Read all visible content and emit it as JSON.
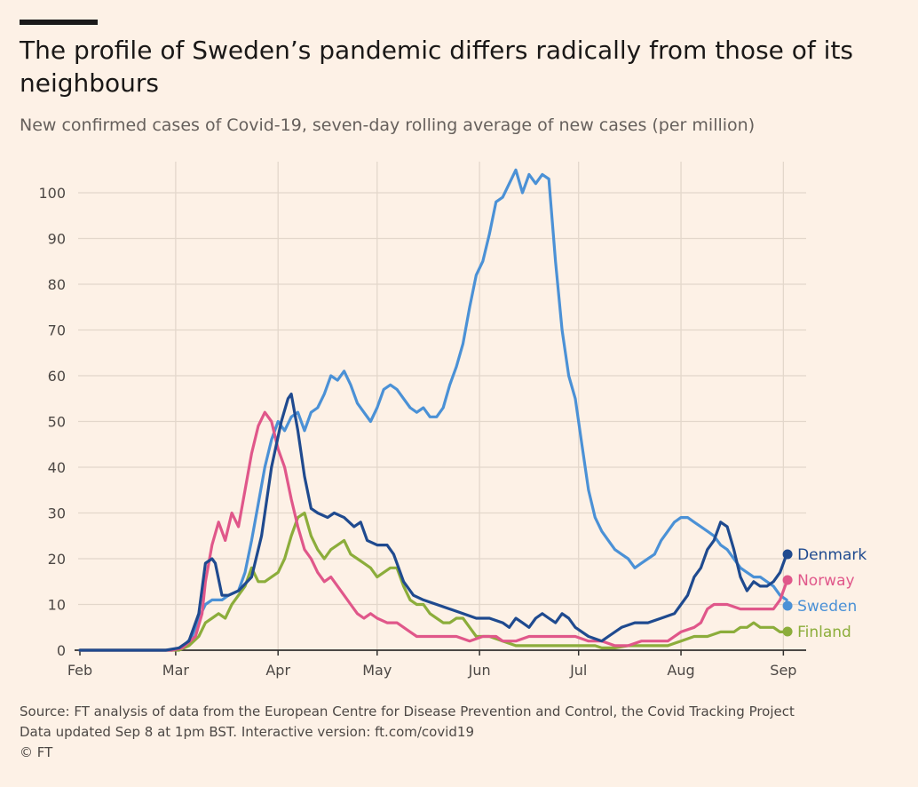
{
  "header": {
    "title": "The profile of Sweden’s pandemic differs radically from those of its neighbours",
    "subtitle": "New confirmed cases of Covid-19, seven-day rolling average of new cases (per million)"
  },
  "footer": {
    "source": "Source: FT analysis of data from the European Centre for Disease Prevention and Control, the Covid Tracking Project",
    "updated": "Data updated Sep 8 at 1pm BST. Interactive version: ft.com/covid19",
    "copyright": "© FT"
  },
  "colors": {
    "background": "#fdf1e6",
    "grid": "#e3d7cb",
    "axis": "#33302e",
    "Denmark": "#1f4a8f",
    "Norway": "#e0578a",
    "Sweden": "#4b91d6",
    "Finland": "#8cad3b"
  },
  "chart_data": {
    "type": "line",
    "title": "The profile of Sweden’s pandemic differs radically from those of its neighbours",
    "subtitle": "New confirmed cases of Covid-19, seven-day rolling average of new cases (per million)",
    "xlabel": "",
    "ylabel": "",
    "x_unit": "day of year 2020 (Feb 1 = 0)",
    "xlim": [
      -2,
      220
    ],
    "ylim": [
      0,
      105
    ],
    "grid": true,
    "x_ticks": [
      {
        "label": "Feb",
        "day": 0
      },
      {
        "label": "Mar",
        "day": 29
      },
      {
        "label": "Apr",
        "day": 60
      },
      {
        "label": "May",
        "day": 90
      },
      {
        "label": "Jun",
        "day": 121
      },
      {
        "label": "Jul",
        "day": 151
      },
      {
        "label": "Aug",
        "day": 182
      },
      {
        "label": "Sep",
        "day": 213
      }
    ],
    "y_ticks": [
      0,
      10,
      20,
      30,
      40,
      50,
      60,
      70,
      80,
      90,
      100
    ],
    "legend_placement": "right end of lines",
    "series": [
      {
        "name": "Denmark",
        "points": [
          [
            0,
            0
          ],
          [
            26,
            0
          ],
          [
            30,
            0.5
          ],
          [
            33,
            2
          ],
          [
            36,
            8
          ],
          [
            38,
            19
          ],
          [
            40,
            20
          ],
          [
            41,
            19
          ],
          [
            43,
            12
          ],
          [
            45,
            12
          ],
          [
            48,
            13
          ],
          [
            52,
            16
          ],
          [
            55,
            25
          ],
          [
            58,
            40
          ],
          [
            61,
            50
          ],
          [
            63,
            55
          ],
          [
            64,
            56
          ],
          [
            66,
            48
          ],
          [
            68,
            38
          ],
          [
            70,
            31
          ],
          [
            72,
            30
          ],
          [
            75,
            29
          ],
          [
            77,
            30
          ],
          [
            80,
            29
          ],
          [
            83,
            27
          ],
          [
            85,
            28
          ],
          [
            87,
            24
          ],
          [
            90,
            23
          ],
          [
            93,
            23
          ],
          [
            95,
            21
          ],
          [
            98,
            15
          ],
          [
            101,
            12
          ],
          [
            104,
            11
          ],
          [
            108,
            10
          ],
          [
            112,
            9
          ],
          [
            116,
            8
          ],
          [
            120,
            7
          ],
          [
            124,
            7
          ],
          [
            128,
            6
          ],
          [
            130,
            5
          ],
          [
            132,
            7
          ],
          [
            134,
            6
          ],
          [
            136,
            5
          ],
          [
            138,
            7
          ],
          [
            140,
            8
          ],
          [
            142,
            7
          ],
          [
            144,
            6
          ],
          [
            146,
            8
          ],
          [
            148,
            7
          ],
          [
            150,
            5
          ],
          [
            154,
            3
          ],
          [
            158,
            2
          ],
          [
            160,
            3
          ],
          [
            164,
            5
          ],
          [
            168,
            6
          ],
          [
            172,
            6
          ],
          [
            176,
            7
          ],
          [
            180,
            8
          ],
          [
            184,
            12
          ],
          [
            186,
            16
          ],
          [
            188,
            18
          ],
          [
            190,
            22
          ],
          [
            192,
            24
          ],
          [
            194,
            28
          ],
          [
            196,
            27
          ],
          [
            198,
            22
          ],
          [
            200,
            16
          ],
          [
            202,
            13
          ],
          [
            204,
            15
          ],
          [
            206,
            14
          ],
          [
            208,
            14
          ],
          [
            210,
            15
          ],
          [
            212,
            17
          ],
          [
            214,
            21
          ]
        ]
      },
      {
        "name": "Norway",
        "points": [
          [
            0,
            0
          ],
          [
            28,
            0
          ],
          [
            31,
            0.5
          ],
          [
            35,
            3
          ],
          [
            37,
            8
          ],
          [
            38,
            15
          ],
          [
            40,
            23
          ],
          [
            42,
            28
          ],
          [
            44,
            24
          ],
          [
            46,
            30
          ],
          [
            48,
            27
          ],
          [
            50,
            35
          ],
          [
            52,
            43
          ],
          [
            54,
            49
          ],
          [
            56,
            52
          ],
          [
            58,
            50
          ],
          [
            60,
            44
          ],
          [
            62,
            40
          ],
          [
            64,
            33
          ],
          [
            66,
            27
          ],
          [
            68,
            22
          ],
          [
            70,
            20
          ],
          [
            72,
            17
          ],
          [
            74,
            15
          ],
          [
            76,
            16
          ],
          [
            78,
            14
          ],
          [
            80,
            12
          ],
          [
            82,
            10
          ],
          [
            84,
            8
          ],
          [
            86,
            7
          ],
          [
            88,
            8
          ],
          [
            90,
            7
          ],
          [
            93,
            6
          ],
          [
            96,
            6
          ],
          [
            100,
            4
          ],
          [
            102,
            3
          ],
          [
            106,
            3
          ],
          [
            110,
            3
          ],
          [
            114,
            3
          ],
          [
            118,
            2
          ],
          [
            122,
            3
          ],
          [
            126,
            3
          ],
          [
            128,
            2
          ],
          [
            132,
            2
          ],
          [
            136,
            3
          ],
          [
            140,
            3
          ],
          [
            144,
            3
          ],
          [
            148,
            3
          ],
          [
            150,
            3
          ],
          [
            154,
            2
          ],
          [
            158,
            2
          ],
          [
            162,
            1
          ],
          [
            166,
            1
          ],
          [
            170,
            2
          ],
          [
            174,
            2
          ],
          [
            178,
            2
          ],
          [
            182,
            4
          ],
          [
            186,
            5
          ],
          [
            188,
            6
          ],
          [
            190,
            9
          ],
          [
            192,
            10
          ],
          [
            196,
            10
          ],
          [
            200,
            9
          ],
          [
            202,
            9
          ],
          [
            206,
            9
          ],
          [
            210,
            9
          ],
          [
            212,
            11
          ],
          [
            213,
            13
          ],
          [
            214,
            15
          ]
        ]
      },
      {
        "name": "Sweden",
        "points": [
          [
            0,
            0
          ],
          [
            28,
            0
          ],
          [
            31,
            0.5
          ],
          [
            34,
            3
          ],
          [
            36,
            7
          ],
          [
            38,
            10
          ],
          [
            40,
            11
          ],
          [
            43,
            11
          ],
          [
            45,
            12
          ],
          [
            48,
            13
          ],
          [
            50,
            17
          ],
          [
            52,
            24
          ],
          [
            54,
            32
          ],
          [
            56,
            40
          ],
          [
            58,
            46
          ],
          [
            60,
            50
          ],
          [
            62,
            48
          ],
          [
            64,
            51
          ],
          [
            66,
            52
          ],
          [
            68,
            48
          ],
          [
            70,
            52
          ],
          [
            72,
            53
          ],
          [
            74,
            56
          ],
          [
            76,
            60
          ],
          [
            78,
            59
          ],
          [
            80,
            61
          ],
          [
            82,
            58
          ],
          [
            84,
            54
          ],
          [
            86,
            52
          ],
          [
            88,
            50
          ],
          [
            90,
            53
          ],
          [
            92,
            57
          ],
          [
            94,
            58
          ],
          [
            96,
            57
          ],
          [
            98,
            55
          ],
          [
            100,
            53
          ],
          [
            102,
            52
          ],
          [
            104,
            53
          ],
          [
            106,
            51
          ],
          [
            108,
            51
          ],
          [
            110,
            53
          ],
          [
            112,
            58
          ],
          [
            114,
            62
          ],
          [
            116,
            67
          ],
          [
            118,
            75
          ],
          [
            120,
            82
          ],
          [
            122,
            85
          ],
          [
            124,
            91
          ],
          [
            126,
            98
          ],
          [
            128,
            99
          ],
          [
            130,
            102
          ],
          [
            132,
            105
          ],
          [
            134,
            100
          ],
          [
            136,
            104
          ],
          [
            138,
            102
          ],
          [
            140,
            104
          ],
          [
            142,
            103
          ],
          [
            144,
            85
          ],
          [
            146,
            70
          ],
          [
            148,
            60
          ],
          [
            150,
            55
          ],
          [
            152,
            45
          ],
          [
            154,
            35
          ],
          [
            156,
            29
          ],
          [
            158,
            26
          ],
          [
            160,
            24
          ],
          [
            162,
            22
          ],
          [
            164,
            21
          ],
          [
            166,
            20
          ],
          [
            168,
            18
          ],
          [
            170,
            19
          ],
          [
            172,
            20
          ],
          [
            174,
            21
          ],
          [
            176,
            24
          ],
          [
            178,
            26
          ],
          [
            180,
            28
          ],
          [
            182,
            29
          ],
          [
            184,
            29
          ],
          [
            186,
            28
          ],
          [
            188,
            27
          ],
          [
            190,
            26
          ],
          [
            192,
            25
          ],
          [
            194,
            23
          ],
          [
            196,
            22
          ],
          [
            198,
            20
          ],
          [
            200,
            18
          ],
          [
            202,
            17
          ],
          [
            204,
            16
          ],
          [
            206,
            16
          ],
          [
            208,
            15
          ],
          [
            210,
            14
          ],
          [
            212,
            12
          ],
          [
            214,
            11
          ]
        ]
      },
      {
        "name": "Finland",
        "points": [
          [
            0,
            0
          ],
          [
            30,
            0
          ],
          [
            33,
            1
          ],
          [
            36,
            3
          ],
          [
            38,
            6
          ],
          [
            40,
            7
          ],
          [
            42,
            8
          ],
          [
            44,
            7
          ],
          [
            46,
            10
          ],
          [
            48,
            12
          ],
          [
            50,
            14
          ],
          [
            52,
            18
          ],
          [
            54,
            15
          ],
          [
            56,
            15
          ],
          [
            58,
            16
          ],
          [
            60,
            17
          ],
          [
            62,
            20
          ],
          [
            64,
            25
          ],
          [
            66,
            29
          ],
          [
            68,
            30
          ],
          [
            70,
            25
          ],
          [
            72,
            22
          ],
          [
            74,
            20
          ],
          [
            76,
            22
          ],
          [
            78,
            23
          ],
          [
            80,
            24
          ],
          [
            82,
            21
          ],
          [
            84,
            20
          ],
          [
            86,
            19
          ],
          [
            88,
            18
          ],
          [
            90,
            16
          ],
          [
            92,
            17
          ],
          [
            94,
            18
          ],
          [
            96,
            18
          ],
          [
            98,
            14
          ],
          [
            100,
            11
          ],
          [
            102,
            10
          ],
          [
            104,
            10
          ],
          [
            106,
            8
          ],
          [
            108,
            7
          ],
          [
            110,
            6
          ],
          [
            112,
            6
          ],
          [
            114,
            7
          ],
          [
            116,
            7
          ],
          [
            118,
            5
          ],
          [
            120,
            3
          ],
          [
            124,
            3
          ],
          [
            128,
            2
          ],
          [
            132,
            1
          ],
          [
            136,
            1
          ],
          [
            140,
            1
          ],
          [
            144,
            1
          ],
          [
            148,
            1
          ],
          [
            152,
            1
          ],
          [
            156,
            1
          ],
          [
            158,
            0.5
          ],
          [
            162,
            0.5
          ],
          [
            166,
            1
          ],
          [
            170,
            1
          ],
          [
            174,
            1
          ],
          [
            178,
            1
          ],
          [
            182,
            2
          ],
          [
            186,
            3
          ],
          [
            190,
            3
          ],
          [
            194,
            4
          ],
          [
            198,
            4
          ],
          [
            200,
            5
          ],
          [
            202,
            5
          ],
          [
            204,
            6
          ],
          [
            206,
            5
          ],
          [
            208,
            5
          ],
          [
            210,
            5
          ],
          [
            212,
            4
          ],
          [
            214,
            4
          ]
        ]
      }
    ]
  }
}
